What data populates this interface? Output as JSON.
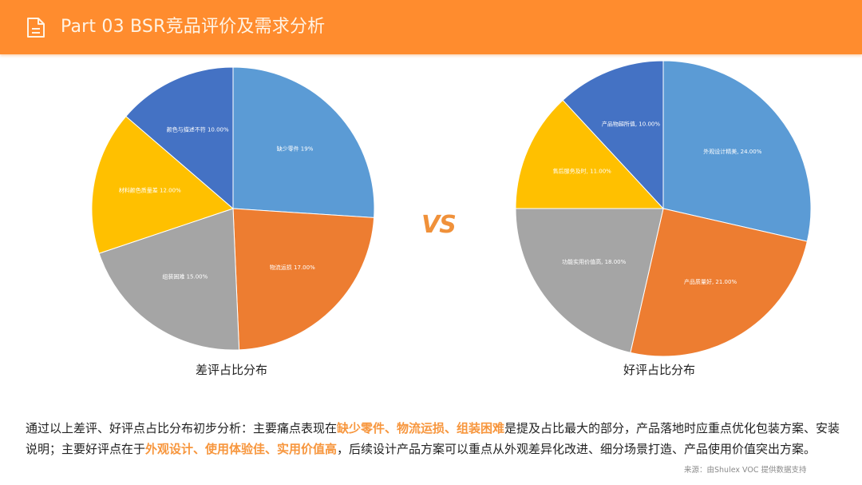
{
  "header": {
    "title": "Part 03  BSR竞品评价及需求分析",
    "icon": "document-icon",
    "background": "#FF8C2E"
  },
  "vs_label": "VS",
  "summary": {
    "line1_pre": "通过以上差评、好评点占比分布初步分析：主要痛点表现在",
    "line1_highlight": "缺少零件、物流运损、组装困难",
    "line1_post": "是提及占比最大的部分，产品落地时应重点优化包装方案、安装",
    "line2_pre": "说明；主要好评点在于",
    "line2_highlight": "外观设计、使用体验佳、实用价值高",
    "line2_post": "，后续设计产品方案可以重点从外观差异化改进、细分场景打造、产品使用价值突出方案。",
    "highlight_color": "#F7963D"
  },
  "source": "来源：由Shulex VOC 提供数据支持",
  "chart_data": [
    {
      "type": "pie",
      "title": "差评占比分布",
      "categories": [
        "缺少零件",
        "物流运损",
        "组装困难",
        "材料颜色质量差",
        "颜色与描述不符"
      ],
      "values": [
        19,
        17,
        15,
        12,
        10
      ],
      "labels": [
        "缺少零件 19%",
        "物流运损 17.00%",
        "组装困难 15.00%",
        "材料颜色质量差 12.00%",
        "颜色与描述不符 10.00%"
      ],
      "colors": [
        "#5B9BD5",
        "#ED7D31",
        "#A5A5A5",
        "#FFC000",
        "#4472C4"
      ],
      "unit": "%"
    },
    {
      "type": "pie",
      "title": "好评占比分布",
      "categories": [
        "外观设计精美",
        "产品质量好",
        "功能实用价值高",
        "售后服务及时",
        "产品物超所值"
      ],
      "values": [
        24,
        21,
        18,
        11,
        10
      ],
      "labels": [
        "外观设计精美, 24.00%",
        "产品质量好, 21.00%",
        "功能实用价值高, 18.00%",
        "售后服务及时, 11.00%",
        "产品物超所值, 10.00%"
      ],
      "colors": [
        "#5B9BD5",
        "#ED7D31",
        "#A5A5A5",
        "#FFC000",
        "#4472C4"
      ],
      "unit": "%"
    }
  ]
}
